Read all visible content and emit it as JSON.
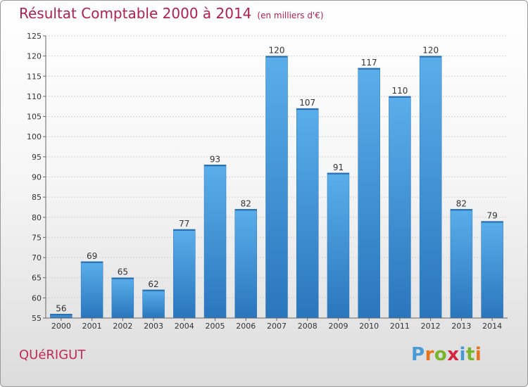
{
  "chart_data": {
    "type": "bar",
    "title": "Résultat Comptable 2000 à 2014",
    "subtitle": "(en milliers d'€)",
    "categories": [
      "2000",
      "2001",
      "2002",
      "2003",
      "2004",
      "2005",
      "2006",
      "2007",
      "2008",
      "2009",
      "2010",
      "2011",
      "2012",
      "2013",
      "2014"
    ],
    "values": [
      56,
      69,
      65,
      62,
      77,
      93,
      82,
      120,
      107,
      91,
      117,
      110,
      120,
      82,
      79
    ],
    "ylim": [
      55,
      125
    ],
    "yticks": [
      55,
      60,
      65,
      70,
      75,
      80,
      85,
      90,
      95,
      100,
      105,
      110,
      115,
      120,
      125
    ],
    "grid": true,
    "bar_color": "#3f8fd6"
  },
  "commune": "QUéRIGUT",
  "logo": {
    "letters": [
      "P",
      "r",
      "o",
      "x",
      "i",
      "t",
      "i"
    ],
    "colors": [
      "#4a9ad6",
      "#e8731e",
      "#7ab42d",
      "#d6263f",
      "#4a9ad6",
      "#7ab42d",
      "#e8731e"
    ]
  }
}
